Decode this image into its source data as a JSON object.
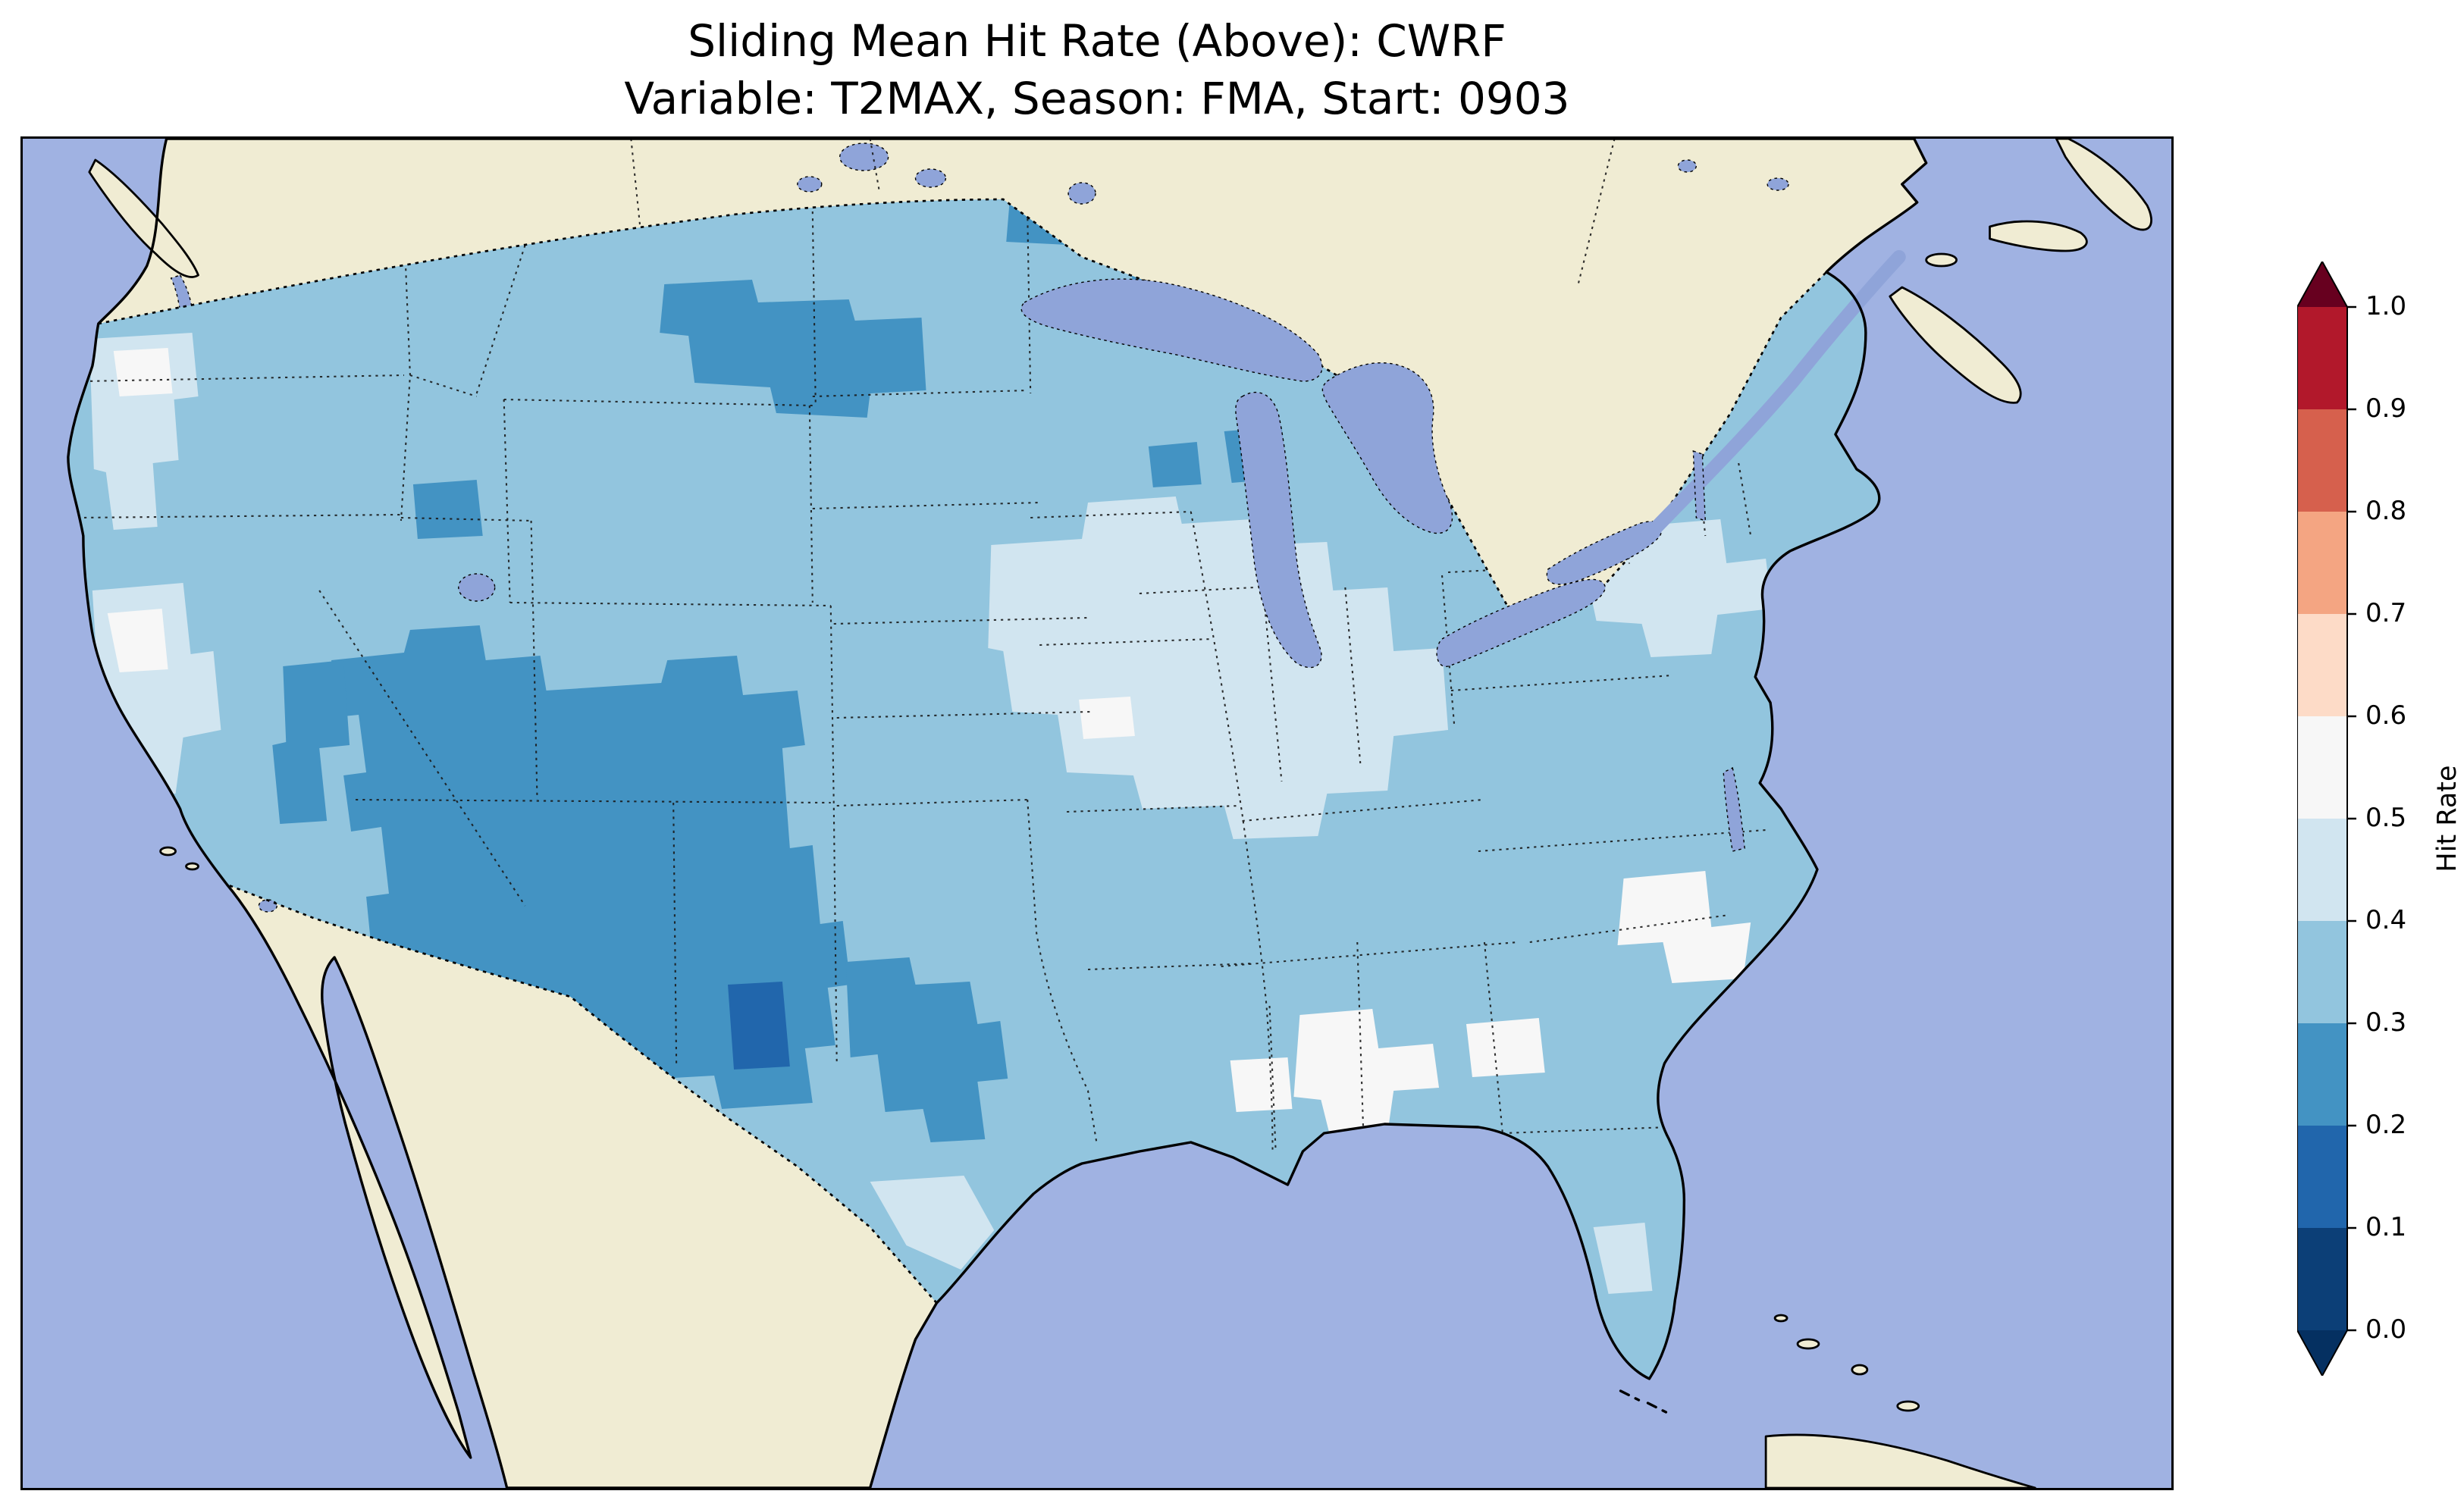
{
  "title": {
    "line1": "Sliding Mean Hit Rate (Above): CWRF",
    "line2": "Variable: T2MAX, Season: FMA, Start: 0903"
  },
  "palette": {
    "ocean": "#a0b2e2",
    "land": "#f0ecd3",
    "lake": "#8fa4d9",
    "background": "#ffffff",
    "coastline": "#000000"
  },
  "chart_data": {
    "type": "heatmap",
    "title": "Sliding Mean Hit Rate (Above): CWRF",
    "subtitle": "Variable: T2MAX, Season: FMA, Start: 0903",
    "metric": "Sliding Mean Hit Rate (Above)",
    "model": "CWRF",
    "variable": "T2MAX",
    "season": "FMA",
    "start_date": "0903",
    "region": "Contiguous United States (gridded map)",
    "colorbar": {
      "label": "Hit Rate",
      "orientation": "vertical",
      "extend": "both",
      "ticks": [
        "1.0",
        "0.9",
        "0.8",
        "0.7",
        "0.6",
        "0.5",
        "0.4",
        "0.3",
        "0.2",
        "0.1",
        "0.0"
      ],
      "range": [
        0.0,
        1.0
      ],
      "above_color": "#67001f",
      "below_color": "#053061",
      "bin_order_top_to_bottom": [
        "0.9-1.0",
        "0.8-0.9",
        "0.7-0.8",
        "0.6-0.7",
        "0.5-0.6",
        "0.4-0.5",
        "0.3-0.4",
        "0.2-0.3",
        "0.1-0.2",
        "0.0-0.1"
      ],
      "bin_colors": {
        "0.9-1.0": "#b2182b",
        "0.8-0.9": "#d6604d",
        "0.7-0.8": "#f4a582",
        "0.6-0.7": "#fddbc7",
        "0.5-0.6": "#f7f7f7",
        "0.4-0.5": "#d1e5f0",
        "0.3-0.4": "#92c5de",
        "0.2-0.3": "#4393c3",
        "0.1-0.2": "#2166ac",
        "0.0-0.1": "#0c3f77"
      }
    },
    "map_observations": [
      {
        "region": "Most of the contiguous US",
        "hit_rate_bin": "0.3-0.4"
      },
      {
        "region": "Great Basin / Colorado Plateau / Four Corners",
        "hit_rate_bin": "0.2-0.3"
      },
      {
        "region": "Eastern New Mexico core patch",
        "hit_rate_bin": "0.1-0.2"
      },
      {
        "region": "Northern Montana and western Dakotas",
        "hit_rate_bin": "0.2-0.3"
      },
      {
        "region": "Oklahoma and northern Texas",
        "hit_rate_bin": "0.2-0.3"
      },
      {
        "region": "Upper Great Lakes shorelines",
        "hit_rate_bin": "0.2-0.3"
      },
      {
        "region": "Midwest corn belt and Ohio valley",
        "hit_rate_bin": "0.4-0.5"
      },
      {
        "region": "Interior Northeast",
        "hit_rate_bin": "0.4-0.5"
      },
      {
        "region": "Gulf Coast states (LA / MS / AL / GA)",
        "hit_rate_bin": "0.5-0.6"
      },
      {
        "region": "Coastal Carolinas",
        "hit_rate_bin": "0.5-0.6"
      },
      {
        "region": "Pacific Northwest coast and central California",
        "hit_rate_bin": "0.4-0.6"
      }
    ]
  }
}
